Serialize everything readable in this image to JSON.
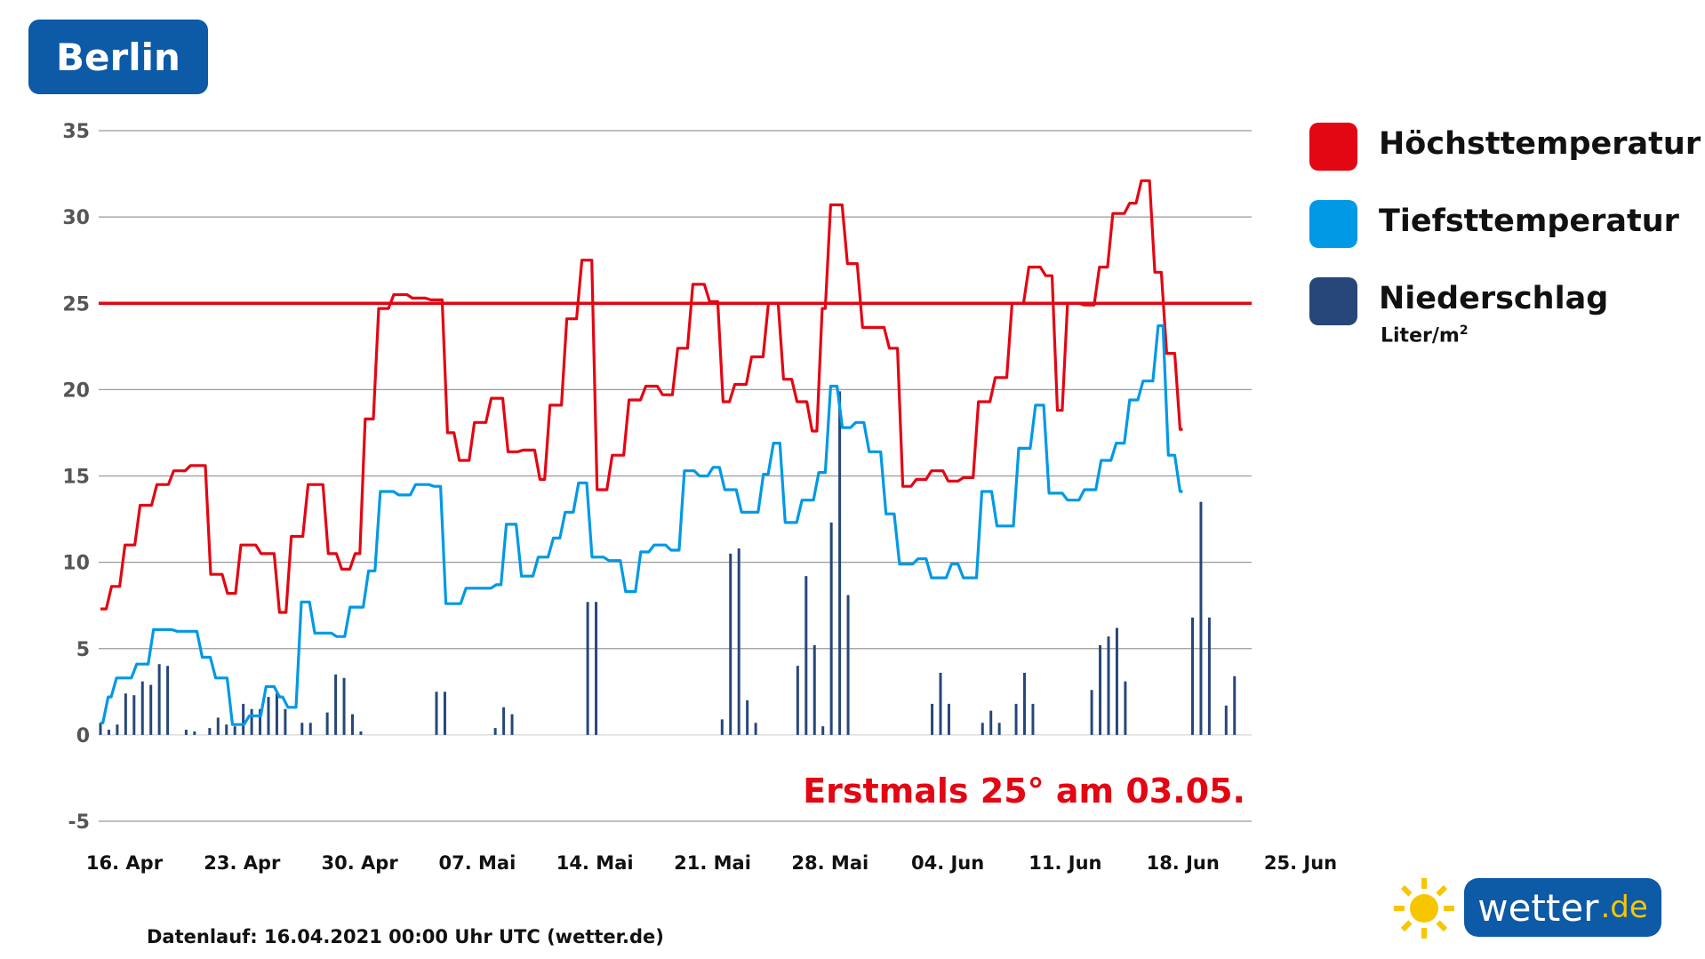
{
  "title": "Berlin",
  "legend": [
    {
      "label": "Höchsttemperatur",
      "color": "#e30613"
    },
    {
      "label": "Tiefsttemperatur",
      "color": "#0099e6"
    },
    {
      "label": "Niederschlag",
      "unit": "Liter/m",
      "unit_sup": "2",
      "color": "#27477a"
    }
  ],
  "annotation": "Erstmals 25° am 03.05.",
  "source": "Datenlauf: 16.04.2021 00:00 Uhr UTC (wetter.de)",
  "logo": {
    "text": "wetter",
    "domain": ".de",
    "icon": "sun-icon"
  },
  "chart_data": {
    "type": "line",
    "x_unit": "day (0 = 16. Apr 2021)",
    "y_ticks": [
      "35",
      "30",
      "25",
      "20",
      "15",
      "10",
      "5",
      "0",
      "-5"
    ],
    "x_tick_labels": [
      "16. Apr",
      "23. Apr",
      "30. Apr",
      "07. Mai",
      "14. Mai",
      "21. Mai",
      "28. Mai",
      "04. Jun",
      "11. Jun",
      "18. Jun",
      "25. Jun"
    ],
    "ylim": [
      -5,
      35
    ],
    "xlim": [
      0,
      70
    ],
    "reference_line": {
      "y": 25,
      "color": "#e30613"
    },
    "series": [
      {
        "name": "Höchsttemperatur",
        "color": "#e30613",
        "points": [
          [
            0,
            7.3
          ],
          [
            0.5,
            8.6
          ],
          [
            1.3,
            11
          ],
          [
            2.2,
            13.3
          ],
          [
            3.2,
            14.5
          ],
          [
            4.2,
            15.3
          ],
          [
            5.2,
            15.6
          ],
          [
            6.4,
            9.3
          ],
          [
            7.4,
            8.2
          ],
          [
            8.2,
            11
          ],
          [
            9.4,
            10.5
          ],
          [
            10.5,
            7.1
          ],
          [
            11.2,
            11.5
          ],
          [
            12.2,
            14.5
          ],
          [
            13.4,
            10.5
          ],
          [
            14.2,
            9.6
          ],
          [
            15.0,
            10.5
          ],
          [
            15.6,
            18.3
          ],
          [
            16.4,
            24.7
          ],
          [
            17.3,
            25.5
          ],
          [
            18.4,
            25.3
          ],
          [
            19.5,
            25.2
          ],
          [
            20.5,
            17.5
          ],
          [
            21.2,
            15.9
          ],
          [
            22.1,
            18.1
          ],
          [
            23.1,
            19.5
          ],
          [
            24.1,
            16.4
          ],
          [
            25.0,
            16.5
          ],
          [
            26.0,
            14.8
          ],
          [
            26.6,
            19.1
          ],
          [
            27.6,
            24.1
          ],
          [
            28.5,
            27.5
          ],
          [
            29.4,
            14.2
          ],
          [
            30.3,
            16.2
          ],
          [
            31.3,
            19.4
          ],
          [
            32.3,
            20.2
          ],
          [
            33.3,
            19.7
          ],
          [
            34.2,
            22.4
          ],
          [
            35.1,
            26.1
          ],
          [
            36.1,
            25.1
          ],
          [
            36.9,
            19.3
          ],
          [
            37.6,
            20.3
          ],
          [
            38.6,
            21.9
          ],
          [
            39.6,
            25
          ],
          [
            40.5,
            20.6
          ],
          [
            41.3,
            19.3
          ],
          [
            42.2,
            17.6
          ],
          [
            42.8,
            24.7
          ],
          [
            43.3,
            30.7
          ],
          [
            44.3,
            27.3
          ],
          [
            45.2,
            23.6
          ],
          [
            46.8,
            22.4
          ],
          [
            47.6,
            14.4
          ],
          [
            48.4,
            14.8
          ],
          [
            49.3,
            15.3
          ],
          [
            50.3,
            14.7
          ],
          [
            51.2,
            14.9
          ],
          [
            52.1,
            19.3
          ],
          [
            53.1,
            20.7
          ],
          [
            54.1,
            25
          ],
          [
            55.1,
            27.1
          ],
          [
            56.1,
            26.6
          ],
          [
            56.8,
            18.8
          ],
          [
            57.4,
            25
          ],
          [
            58.4,
            24.9
          ],
          [
            59.3,
            27.1
          ],
          [
            60.1,
            30.2
          ],
          [
            61.1,
            30.8
          ],
          [
            61.8,
            32.1
          ],
          [
            62.6,
            26.8
          ],
          [
            63.3,
            22.1
          ],
          [
            64.1,
            17.7
          ]
        ]
      },
      {
        "name": "Tiefsttemperatur",
        "color": "#0099e6",
        "points": [
          [
            0,
            0.7
          ],
          [
            0.3,
            2.2
          ],
          [
            0.8,
            3.3
          ],
          [
            2.0,
            4.1
          ],
          [
            3.0,
            6.1
          ],
          [
            4.4,
            6.0
          ],
          [
            5.9,
            4.5
          ],
          [
            6.7,
            3.3
          ],
          [
            7.7,
            0.6
          ],
          [
            8.7,
            1.1
          ],
          [
            9.7,
            2.8
          ],
          [
            10.5,
            2.2
          ],
          [
            11,
            1.6
          ],
          [
            11.8,
            7.7
          ],
          [
            12.6,
            5.9
          ],
          [
            13.9,
            5.7
          ],
          [
            14.7,
            7.4
          ],
          [
            15.8,
            9.5
          ],
          [
            16.5,
            14.1
          ],
          [
            17.6,
            13.9
          ],
          [
            18.6,
            14.5
          ],
          [
            19.7,
            14.4
          ],
          [
            20.4,
            7.6
          ],
          [
            21.6,
            8.5
          ],
          [
            23.4,
            8.7
          ],
          [
            24.0,
            12.2
          ],
          [
            24.9,
            9.2
          ],
          [
            25.9,
            10.3
          ],
          [
            26.8,
            11.4
          ],
          [
            27.5,
            12.9
          ],
          [
            28.3,
            14.6
          ],
          [
            29.1,
            10.3
          ],
          [
            30.1,
            10.1
          ],
          [
            31.1,
            8.3
          ],
          [
            32.0,
            10.6
          ],
          [
            32.8,
            11.0
          ],
          [
            33.8,
            10.7
          ],
          [
            34.6,
            15.3
          ],
          [
            35.5,
            15.0
          ],
          [
            36.3,
            15.5
          ],
          [
            37.0,
            14.2
          ],
          [
            38.0,
            12.9
          ],
          [
            39.3,
            15.1
          ],
          [
            39.9,
            16.9
          ],
          [
            40.6,
            12.3
          ],
          [
            41.6,
            13.6
          ],
          [
            42.6,
            15.2
          ],
          [
            43.3,
            20.2
          ],
          [
            44.0,
            17.8
          ],
          [
            44.8,
            18.1
          ],
          [
            45.6,
            16.4
          ],
          [
            46.6,
            12.8
          ],
          [
            47.4,
            9.9
          ],
          [
            48.5,
            10.2
          ],
          [
            49.3,
            9.1
          ],
          [
            50.5,
            9.9
          ],
          [
            51.2,
            9.1
          ],
          [
            52.3,
            14.1
          ],
          [
            53.2,
            12.1
          ],
          [
            54.5,
            16.6
          ],
          [
            55.5,
            19.1
          ],
          [
            56.3,
            14
          ],
          [
            57.4,
            13.6
          ],
          [
            58.4,
            14.2
          ],
          [
            59.4,
            15.9
          ],
          [
            60.3,
            16.9
          ],
          [
            61.1,
            19.4
          ],
          [
            61.9,
            20.5
          ],
          [
            62.8,
            23.7
          ],
          [
            63.4,
            16.2
          ],
          [
            64.1,
            14.1
          ]
        ]
      }
    ],
    "precipitation": {
      "name": "Niederschlag",
      "color": "#27477a",
      "values": [
        [
          0,
          0.7
        ],
        [
          0.5,
          0.3
        ],
        [
          1.0,
          0.6
        ],
        [
          1.5,
          2.4
        ],
        [
          2.0,
          2.3
        ],
        [
          2.5,
          3.1
        ],
        [
          3.0,
          2.9
        ],
        [
          3.5,
          4.1
        ],
        [
          4.0,
          4.0
        ],
        [
          5.1,
          0.3
        ],
        [
          5.6,
          0.2
        ],
        [
          6.5,
          0.4
        ],
        [
          7.0,
          1.0
        ],
        [
          7.5,
          0.6
        ],
        [
          8.0,
          0.5
        ],
        [
          8.5,
          1.8
        ],
        [
          9.0,
          1.5
        ],
        [
          9.5,
          1.5
        ],
        [
          10.0,
          2.2
        ],
        [
          10.5,
          2.4
        ],
        [
          11.0,
          1.5
        ],
        [
          12.0,
          0.7
        ],
        [
          12.5,
          0.7
        ],
        [
          13.5,
          1.3
        ],
        [
          14.0,
          3.5
        ],
        [
          14.5,
          3.3
        ],
        [
          15.0,
          1.2
        ],
        [
          15.5,
          0.2
        ],
        [
          20.0,
          2.5
        ],
        [
          20.5,
          2.5
        ],
        [
          23.5,
          0.4
        ],
        [
          24.0,
          1.6
        ],
        [
          24.5,
          1.2
        ],
        [
          29.0,
          7.7
        ],
        [
          29.5,
          7.7
        ],
        [
          37.0,
          0.9
        ],
        [
          37.5,
          10.5
        ],
        [
          38.0,
          10.8
        ],
        [
          38.5,
          2.0
        ],
        [
          39.0,
          0.7
        ],
        [
          41.5,
          4.0
        ],
        [
          42.0,
          9.2
        ],
        [
          42.5,
          5.2
        ],
        [
          43.0,
          0.5
        ],
        [
          43.5,
          12.3
        ],
        [
          44.0,
          19.9
        ],
        [
          44.5,
          8.1
        ],
        [
          49.5,
          1.8
        ],
        [
          50.0,
          3.6
        ],
        [
          50.5,
          1.8
        ],
        [
          52.5,
          0.7
        ],
        [
          53.0,
          1.4
        ],
        [
          53.5,
          0.7
        ],
        [
          54.5,
          1.8
        ],
        [
          55.0,
          3.6
        ],
        [
          55.5,
          1.8
        ],
        [
          59.0,
          2.6
        ],
        [
          59.5,
          5.2
        ],
        [
          60.0,
          5.7
        ],
        [
          60.5,
          6.2
        ],
        [
          61.0,
          3.1
        ],
        [
          65.0,
          6.8
        ],
        [
          65.5,
          13.5
        ],
        [
          66.0,
          6.8
        ],
        [
          67.0,
          1.7
        ],
        [
          67.5,
          3.4
        ]
      ]
    }
  }
}
